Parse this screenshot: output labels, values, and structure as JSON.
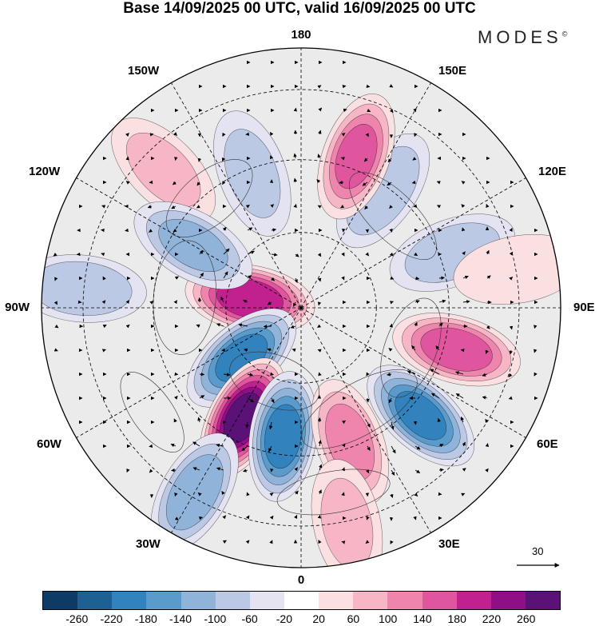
{
  "title": "Base 14/09/2025 00 UTC, valid 16/09/2025 00 UTC",
  "brand": "MODES",
  "brand_mark": "©",
  "longitude_labels": {
    "top": "180",
    "bottom": "0",
    "left": "90W",
    "right": "90E",
    "upper_left": "150W",
    "upper_right": "150E",
    "mid_left": "120W",
    "mid_right": "120E",
    "lower_left": "60W",
    "lower_right": "60E",
    "bottom_left": "30W",
    "bottom_right": "30E"
  },
  "vector_scale_label": "30",
  "colorbar": {
    "colors": [
      "#0d3b66",
      "#1c6192",
      "#3182bd",
      "#5a9bcb",
      "#8fb3d9",
      "#bcc9e5",
      "#e3e3f1",
      "#ffffff",
      "#fbe0e2",
      "#f6b6c6",
      "#ee85ad",
      "#e0569e",
      "#c1218f",
      "#8f0f86",
      "#5a1277"
    ],
    "ticks": [
      "-260",
      "-220",
      "-180",
      "-140",
      "-100",
      "-60",
      "-20",
      "20",
      "60",
      "100",
      "140",
      "180",
      "220",
      "260"
    ]
  },
  "anomaly_centers": [
    {
      "lon": -100,
      "r": 0.2,
      "value": 200
    },
    {
      "lon": -50,
      "r": 0.3,
      "value": -180
    },
    {
      "lon": -28,
      "r": 0.48,
      "value": 260
    },
    {
      "lon": -8,
      "r": 0.5,
      "value": -190
    },
    {
      "lon": 20,
      "r": 0.55,
      "value": 110
    },
    {
      "lon": 48,
      "r": 0.62,
      "value": -180
    },
    {
      "lon": 75,
      "r": 0.62,
      "value": 160
    },
    {
      "lon": 110,
      "r": 0.62,
      "value": -80
    },
    {
      "lon": 145,
      "r": 0.55,
      "value": -90
    },
    {
      "lon": 160,
      "r": 0.62,
      "value": 140
    },
    {
      "lon": -160,
      "r": 0.55,
      "value": -60
    },
    {
      "lon": -135,
      "r": 0.75,
      "value": 60
    },
    {
      "lon": -95,
      "r": 0.85,
      "value": -90
    },
    {
      "lon": -30,
      "r": 0.82,
      "value": -120
    },
    {
      "lon": 12,
      "r": 0.85,
      "value": 60
    },
    {
      "lon": 100,
      "r": 0.85,
      "value": 50
    },
    {
      "lon": -120,
      "r": 0.48,
      "value": -100
    }
  ]
}
